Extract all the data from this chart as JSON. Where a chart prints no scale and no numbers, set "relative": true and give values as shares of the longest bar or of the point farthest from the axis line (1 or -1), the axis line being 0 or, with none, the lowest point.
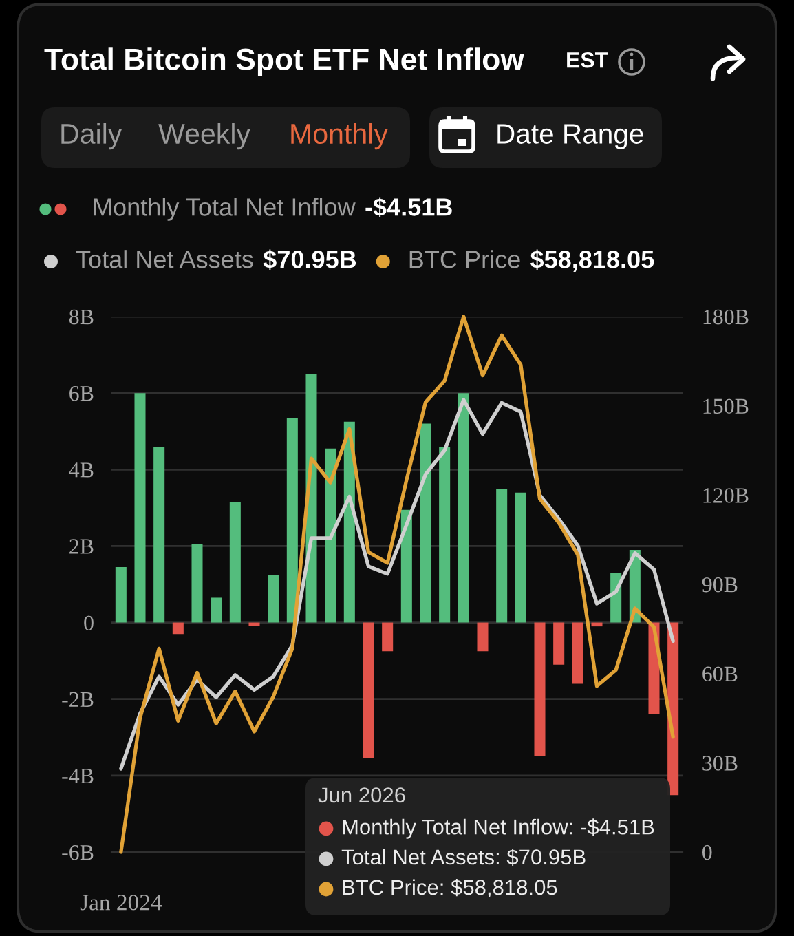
{
  "chart_data": [
    {
      "type": "bar",
      "title": "Total Bitcoin Spot ETF Net Inflow",
      "categories": [
        "Jan 2024",
        null,
        null,
        null,
        null,
        null,
        null,
        null,
        null,
        null,
        null,
        null,
        null,
        null,
        null,
        null,
        null,
        null,
        null,
        null,
        null,
        null,
        null,
        null,
        null,
        null,
        null,
        null,
        null,
        null
      ],
      "ylim": [
        -6,
        8
      ],
      "yticks": [
        {
          "value": -6,
          "label": "-6B"
        },
        {
          "value": -4,
          "label": "-4B"
        },
        {
          "value": -2,
          "label": "-2B"
        },
        {
          "value": 0,
          "label": "0"
        },
        {
          "value": 2,
          "label": "2B"
        },
        {
          "value": 4,
          "label": "4B"
        },
        {
          "value": 6,
          "label": "6B"
        },
        {
          "value": 8,
          "label": "8B"
        }
      ],
      "y2lim": [
        0,
        180
      ],
      "y2ticks": [
        {
          "value": 0,
          "label": "0"
        },
        {
          "value": 30,
          "label": "30B"
        },
        {
          "value": 60,
          "label": "60B"
        },
        {
          "value": 90,
          "label": "90B"
        },
        {
          "value": 120,
          "label": "120B"
        },
        {
          "value": 150,
          "label": "150B"
        },
        {
          "value": 180,
          "label": "180B"
        }
      ],
      "grid": "y",
      "legend": "top",
      "series": [
        {
          "name": "Monthly Total Net Inflow",
          "colors": [
            "#54bd7d",
            "#54bd7d",
            "#54bd7d",
            "#e2544b",
            "#54bd7d",
            "#54bd7d",
            "#54bd7d",
            "#e2544b",
            "#54bd7d",
            "#54bd7d",
            "#54bd7d",
            "#54bd7d",
            "#54bd7d",
            "#e2544b",
            "#e2544b",
            "#54bd7d",
            "#54bd7d",
            "#54bd7d",
            "#54bd7d",
            "#e2544b",
            "#54bd7d",
            "#54bd7d",
            "#e2544b",
            "#e2544b",
            "#e2544b",
            "#e2544b",
            "#54bd7d",
            "#54bd7d",
            "#e2544b",
            "#e2544b"
          ],
          "values": [
            1.45,
            6.0,
            4.6,
            -0.3,
            2.05,
            0.65,
            3.15,
            -0.08,
            1.25,
            5.35,
            6.5,
            4.55,
            5.25,
            -3.55,
            -0.75,
            2.95,
            5.2,
            4.6,
            6.0,
            -0.75,
            3.5,
            3.4,
            -3.5,
            -1.1,
            -1.6,
            -0.1,
            1.3,
            1.9,
            -2.4,
            -4.51
          ]
        },
        {
          "name": "Total Net Assets",
          "type": "line",
          "axis": "y2",
          "color": "#cfcfcf",
          "values": [
            28,
            46.5,
            59,
            49.5,
            58,
            52,
            59.5,
            54.5,
            59,
            69.5,
            105.5,
            105.5,
            119.5,
            96,
            93.5,
            110,
            127,
            135,
            152,
            140.5,
            151,
            148,
            120,
            112,
            103,
            83.5,
            87.5,
            100.5,
            95,
            70.95
          ]
        }
      ],
      "annotations": [
        "EST",
        "Daily",
        "Weekly",
        "Monthly",
        "Date Range",
        "-$4.51B",
        "$70.95B",
        "$58,818.05",
        "Jun 2026",
        "Monthly Total Net Inflow: -$4.51B",
        "Total Net Assets: $70.95B",
        "BTC Price: $58,818.05"
      ]
    },
    {
      "type": "line",
      "relative": true,
      "legend": "top",
      "categories": [
        null,
        null,
        null,
        null,
        null,
        null,
        null,
        null,
        null,
        null,
        null,
        null,
        null,
        null,
        null,
        null,
        null,
        null,
        null,
        null,
        null,
        null,
        null,
        null,
        null,
        null,
        null,
        null,
        null,
        null
      ],
      "series": [
        {
          "name": "BTC Price",
          "color": "#e1a236",
          "values": [
            0,
            0.25,
            0.38,
            0.245,
            0.335,
            0.24,
            0.3,
            0.225,
            0.29,
            0.38,
            0.735,
            0.69,
            0.79,
            0.56,
            0.54,
            0.695,
            0.84,
            0.88,
            1,
            0.89,
            0.965,
            0.91,
            0.66,
            0.615,
            0.555,
            0.31,
            0.34,
            0.455,
            0.42,
            0.215
          ]
        }
      ]
    }
  ]
}
